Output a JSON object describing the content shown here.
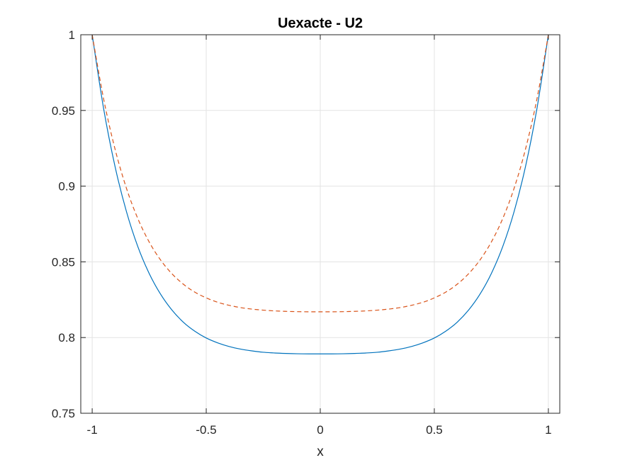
{
  "chart_data": {
    "type": "line",
    "title": "Uexacte - U2",
    "xlabel": "x",
    "ylabel": "",
    "xlim": [
      -1.05,
      1.05
    ],
    "ylim": [
      0.75,
      1.0
    ],
    "xticks": [
      -1,
      -0.5,
      0,
      0.5,
      1
    ],
    "xtick_labels": [
      "-1",
      "-0.5",
      "0",
      "0.5",
      "1"
    ],
    "yticks": [
      0.75,
      0.8,
      0.85,
      0.9,
      0.95,
      1
    ],
    "ytick_labels": [
      "0.75",
      "0.8",
      "0.85",
      "0.9",
      "0.95",
      "1"
    ],
    "grid": true,
    "x": [
      -1.0,
      -0.95,
      -0.9,
      -0.85,
      -0.8,
      -0.75,
      -0.7,
      -0.65,
      -0.6,
      -0.55,
      -0.5,
      -0.45,
      -0.4,
      -0.35,
      -0.3,
      -0.25,
      -0.2,
      -0.15,
      -0.1,
      -0.05,
      0.0,
      0.05,
      0.1,
      0.15,
      0.2,
      0.25,
      0.3,
      0.35,
      0.4,
      0.45,
      0.5,
      0.55,
      0.6,
      0.65,
      0.7,
      0.75,
      0.8,
      0.85,
      0.9,
      0.95,
      1.0
    ],
    "series": [
      {
        "color": "#0072BD",
        "line_style": "solid",
        "values": [
          1.0,
          0.9513,
          0.9131,
          0.8833,
          0.8601,
          0.8423,
          0.8286,
          0.8181,
          0.8101,
          0.8042,
          0.7997,
          0.7965,
          0.7941,
          0.7924,
          0.7912,
          0.7903,
          0.7898,
          0.7895,
          0.7893,
          0.7892,
          0.7892,
          0.7892,
          0.7893,
          0.7895,
          0.7898,
          0.7903,
          0.7912,
          0.7924,
          0.7941,
          0.7965,
          0.7997,
          0.8042,
          0.8101,
          0.8181,
          0.8286,
          0.8423,
          0.8601,
          0.8833,
          0.9131,
          0.9513,
          1.0
        ]
      },
      {
        "color": "#D95319",
        "line_style": "dashed",
        "values": [
          1.0,
          0.9577,
          0.9246,
          0.8987,
          0.8786,
          0.8631,
          0.8512,
          0.8421,
          0.8352,
          0.83,
          0.8262,
          0.8233,
          0.8213,
          0.8198,
          0.8188,
          0.8181,
          0.8176,
          0.8173,
          0.8171,
          0.817,
          0.817,
          0.817,
          0.8171,
          0.8173,
          0.8176,
          0.8181,
          0.8188,
          0.8198,
          0.8213,
          0.8233,
          0.8262,
          0.83,
          0.8352,
          0.8421,
          0.8512,
          0.8631,
          0.8786,
          0.8987,
          0.9246,
          0.9577,
          1.0
        ]
      }
    ]
  }
}
